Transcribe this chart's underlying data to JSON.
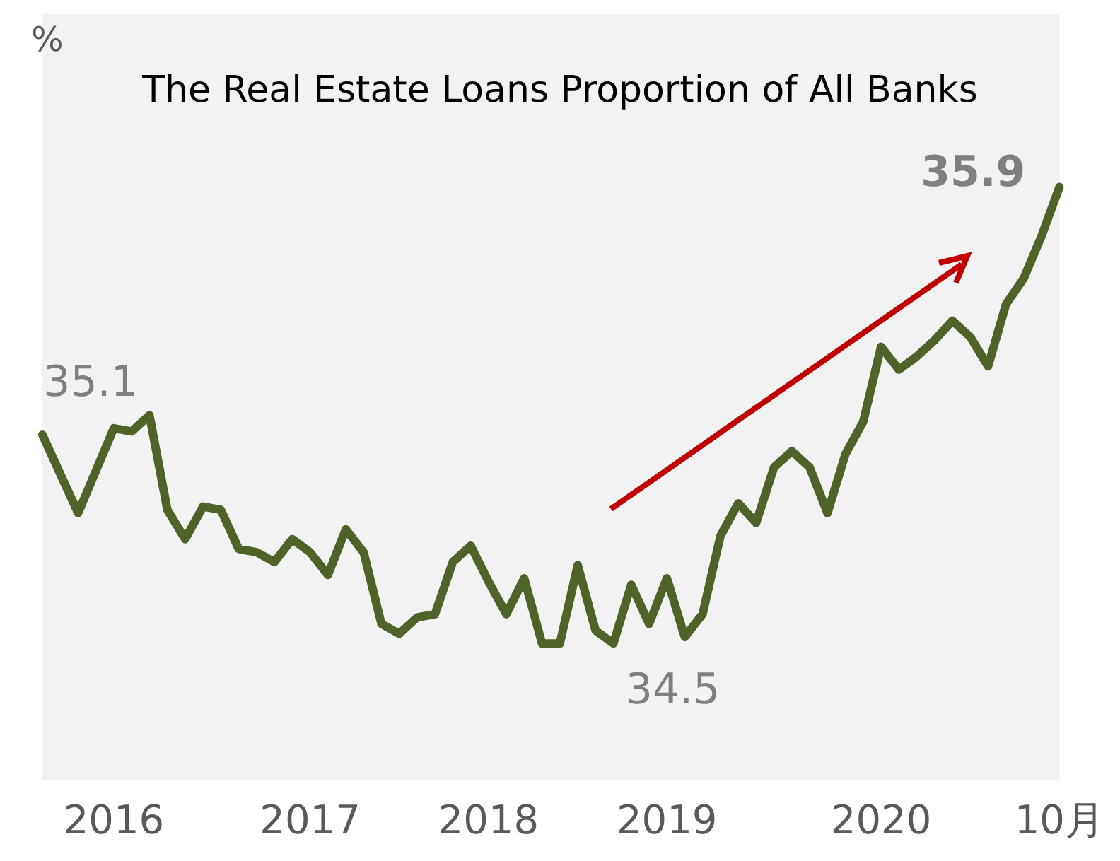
{
  "chart_data": {
    "type": "line",
    "title": "The Real Estate Loans Proportion of All Banks",
    "ylabel": "%",
    "categories": [
      null,
      null,
      null,
      null,
      "2016",
      null,
      null,
      null,
      null,
      null,
      null,
      null,
      null,
      null,
      null,
      "2017",
      null,
      null,
      null,
      null,
      null,
      null,
      null,
      null,
      null,
      "2018",
      null,
      null,
      null,
      null,
      null,
      null,
      null,
      null,
      null,
      "2019",
      null,
      null,
      null,
      null,
      null,
      null,
      null,
      null,
      null,
      null,
      null,
      "2020",
      null,
      null,
      null,
      null,
      null,
      null,
      null,
      null,
      null,
      "10月"
    ],
    "series": [
      {
        "color": "#4f6228",
        "values": [
          35.14,
          35.02,
          34.9,
          35.03,
          35.16,
          35.15,
          35.2,
          34.91,
          34.82,
          34.92,
          34.91,
          34.79,
          34.78,
          34.75,
          34.82,
          34.78,
          34.71,
          34.85,
          34.78,
          34.56,
          34.53,
          34.58,
          34.59,
          34.75,
          34.8,
          34.69,
          34.59,
          34.7,
          34.5,
          34.5,
          34.74,
          34.54,
          34.5,
          34.68,
          34.56,
          34.7,
          34.52,
          34.59,
          34.83,
          34.93,
          34.87,
          35.04,
          35.09,
          35.04,
          34.9,
          35.08,
          35.18,
          35.41,
          35.34,
          35.38,
          35.43,
          35.49,
          35.44,
          35.35,
          35.54,
          35.62,
          35.75,
          35.9
        ],
        "value_labels": [
          "35.1",
          null,
          null,
          null,
          null,
          null,
          null,
          null,
          null,
          null,
          null,
          null,
          null,
          null,
          null,
          null,
          null,
          null,
          null,
          null,
          null,
          null,
          null,
          null,
          null,
          null,
          null,
          null,
          null,
          null,
          null,
          null,
          "34.5",
          null,
          null,
          null,
          null,
          null,
          null,
          null,
          null,
          null,
          null,
          null,
          null,
          null,
          null,
          null,
          null,
          null,
          null,
          null,
          null,
          null,
          null,
          null,
          null,
          "35.9"
        ]
      }
    ],
    "ylim": [
      34.08,
      36.43
    ],
    "tick_labels": "x"
  }
}
